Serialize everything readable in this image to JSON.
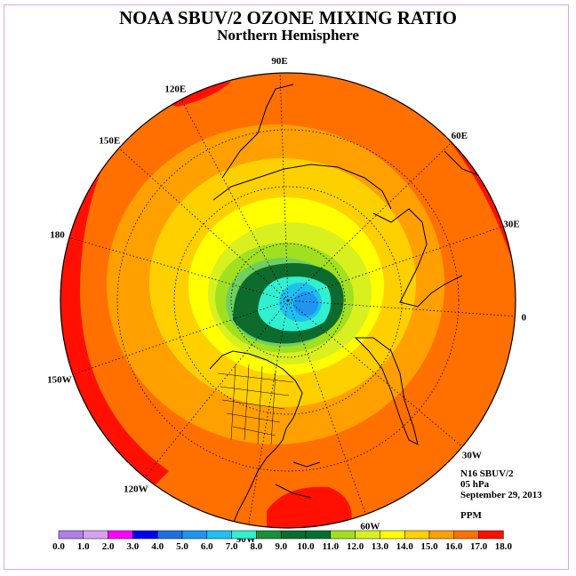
{
  "header": {
    "title": "NOAA SBUV/2 OZONE MIXING RATIO",
    "subtitle": "Northern Hemisphere"
  },
  "longitude_labels": [
    "0",
    "30E",
    "60E",
    "90E",
    "120E",
    "150E",
    "180",
    "150W",
    "120W",
    "90W",
    "60W",
    "30W"
  ],
  "info": {
    "instrument": "N16 SBUV/2",
    "pressure": "05 hPa",
    "date": "September 29, 2013",
    "units": "PPM"
  },
  "colorbar": {
    "ticks": [
      "0.0",
      "1.0",
      "2.0",
      "3.0",
      "4.0",
      "5.0",
      "6.0",
      "7.0",
      "8.0",
      "9.0",
      "10.0",
      "11.0",
      "12.0",
      "13.0",
      "14.0",
      "15.0",
      "16.0",
      "17.0",
      "18.0"
    ],
    "colors": [
      "#b07ee8",
      "#d9a2f0",
      "#ff00ff",
      "#0000ee",
      "#1d6fe0",
      "#1e96f0",
      "#1ec0f0",
      "#30f0d0",
      "#1a8f3a",
      "#0e6b2e",
      "#007030",
      "#a0e020",
      "#d8f020",
      "#ffff00",
      "#ffd000",
      "#ffa000",
      "#ff7000",
      "#ff1000",
      "#8b5a3c"
    ]
  },
  "map_colors": {
    "land_outline": "#000000",
    "grid": "#000000"
  }
}
